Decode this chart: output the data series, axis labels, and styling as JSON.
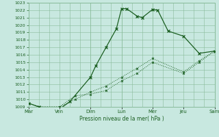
{
  "xlabel": "Pression niveau de la mer( hPa )",
  "ylim": [
    1009,
    1023
  ],
  "yticks": [
    1009,
    1010,
    1011,
    1012,
    1013,
    1014,
    1015,
    1016,
    1017,
    1018,
    1019,
    1020,
    1021,
    1022,
    1023
  ],
  "xlim": [
    0,
    36
  ],
  "day_labels": [
    "Mar",
    "Ven",
    "Dim",
    "Lun",
    "Mer",
    "Jeu",
    "Sam"
  ],
  "day_positions": [
    0,
    6,
    12,
    18,
    24,
    30,
    36
  ],
  "major_day_positions": [
    0,
    12,
    18,
    24,
    36
  ],
  "background_color": "#c8e8e0",
  "grid_color": "#88bb99",
  "line_color": "#1a5e20",
  "line1_x": [
    0,
    2,
    6,
    8,
    12,
    13,
    15,
    17,
    18,
    19,
    21,
    22,
    24,
    25,
    27,
    30,
    33,
    36
  ],
  "line1_y": [
    1009.5,
    1009.0,
    1008.7,
    1009.7,
    1013.0,
    1014.5,
    1017.0,
    1019.5,
    1022.2,
    1022.2,
    1021.2,
    1021.0,
    1022.1,
    1022.0,
    1019.2,
    1018.5,
    1016.2,
    1016.5
  ],
  "line2_x": [
    0,
    2,
    6,
    9,
    12,
    15,
    18,
    21,
    24,
    30,
    33,
    36
  ],
  "line2_y": [
    1009.5,
    1009.0,
    1009.0,
    1010.5,
    1010.7,
    1011.2,
    1012.5,
    1013.5,
    1015.0,
    1013.5,
    1015.0,
    1016.5
  ],
  "line3_x": [
    0,
    2,
    6,
    9,
    12,
    15,
    18,
    21,
    24,
    30,
    33,
    36
  ],
  "line3_y": [
    1009.5,
    1009.0,
    1009.0,
    1010.0,
    1011.0,
    1011.8,
    1013.0,
    1014.2,
    1015.5,
    1013.7,
    1015.2,
    1016.5
  ],
  "all_vline_positions": [
    0,
    2,
    4,
    6,
    8,
    10,
    12,
    14,
    16,
    18,
    20,
    22,
    24,
    26,
    28,
    30,
    32,
    34,
    36
  ]
}
